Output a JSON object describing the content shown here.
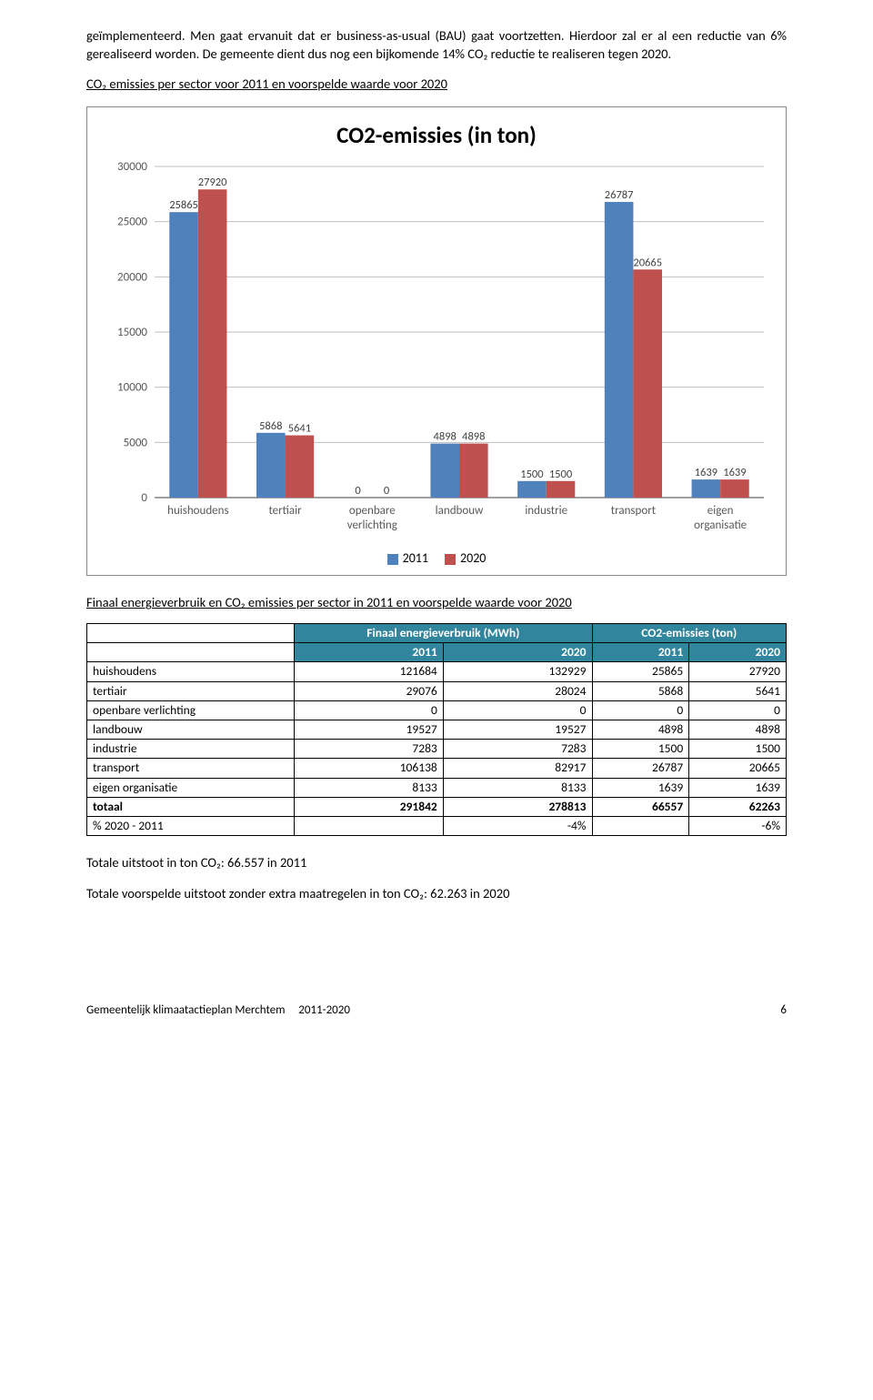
{
  "intro": {
    "p1": "geïmplementeerd. Men gaat ervanuit dat er business-as-usual (BAU) gaat voortzetten. Hierdoor zal er al een reductie van 6% gerealiseerd worden. De gemeente dient dus nog een bijkomende 14% CO₂ reductie te realiseren tegen 2020.",
    "p2": "CO₂ emissies per sector voor 2011 en voorspelde waarde voor 2020"
  },
  "chart": {
    "title": "CO2-emissies (in ton)",
    "categories": [
      "huishoudens",
      "tertiair",
      "openbare verlichting",
      "landbouw",
      "industrie",
      "transport",
      "eigen organisatie"
    ],
    "series": [
      {
        "name": "2011",
        "color": "#4f81bd",
        "values": [
          25865,
          5868,
          0,
          4898,
          1500,
          26787,
          1639
        ]
      },
      {
        "name": "2020",
        "color": "#c0504d",
        "values": [
          27920,
          5641,
          0,
          4898,
          1500,
          20665,
          1639
        ]
      }
    ],
    "ylim": [
      0,
      30000
    ],
    "ytick_step": 5000,
    "grid_color": "#bfbfbf",
    "axis_color": "#808080",
    "label_fontsize": 13,
    "title_fontsize": 25,
    "bar_group_gap": 0.34,
    "bar_inner_gap": 0.0
  },
  "section2_head": "Finaal energieverbruik en CO₂ emissies per sector in 2011 en voorspelde waarde voor 2020",
  "table": {
    "head_group1": "Finaal energieverbruik (MWh)",
    "head_group2": "CO2-emissies (ton)",
    "years": [
      "2011",
      "2020",
      "2011",
      "2020"
    ],
    "rows": [
      {
        "label": "huishoudens",
        "v": [
          "121684",
          "132929",
          "25865",
          "27920"
        ]
      },
      {
        "label": "tertiair",
        "v": [
          "29076",
          "28024",
          "5868",
          "5641"
        ]
      },
      {
        "label": "openbare verlichting",
        "v": [
          "0",
          "0",
          "0",
          "0"
        ]
      },
      {
        "label": "landbouw",
        "v": [
          "19527",
          "19527",
          "4898",
          "4898"
        ]
      },
      {
        "label": "industrie",
        "v": [
          "7283",
          "7283",
          "1500",
          "1500"
        ]
      },
      {
        "label": "transport",
        "v": [
          "106138",
          "82917",
          "26787",
          "20665"
        ]
      },
      {
        "label": "eigen organisatie",
        "v": [
          "8133",
          "8133",
          "1639",
          "1639"
        ]
      }
    ],
    "totaal": {
      "label": "totaal",
      "v": [
        "291842",
        "278813",
        "66557",
        "62263"
      ]
    },
    "pct": {
      "label": "% 2020 - 2011",
      "v": [
        "",
        "-4%",
        "",
        "-6%"
      ]
    }
  },
  "footer_left": "Gemeentelijk klimaatactieplan Merchtem",
  "footer_mid": "2011-2020",
  "footer_page": "6",
  "outro": {
    "l1": "Totale uitstoot in ton CO₂: 66.557 in 2011",
    "l2": "Totale voorspelde uitstoot zonder extra maatregelen in ton CO₂: 62.263 in 2020"
  }
}
